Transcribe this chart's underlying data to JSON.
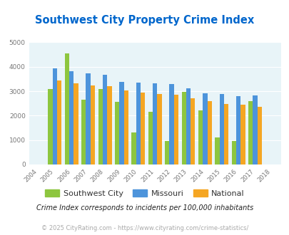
{
  "title": "Southwest City Property Crime Index",
  "years": [
    "2004",
    "2005",
    "2006",
    "2007",
    "2008",
    "2009",
    "2010",
    "2011",
    "2012",
    "2013",
    "2014",
    "2015",
    "2016",
    "2017",
    "2018"
  ],
  "southwest_city": [
    0,
    3100,
    4550,
    2650,
    3100,
    2570,
    1300,
    2160,
    960,
    2960,
    2200,
    1120,
    970,
    2600,
    0
  ],
  "missouri": [
    0,
    3940,
    3830,
    3720,
    3660,
    3370,
    3360,
    3310,
    3300,
    3130,
    2920,
    2890,
    2810,
    2820,
    0
  ],
  "national": [
    0,
    3440,
    3330,
    3230,
    3200,
    3030,
    2950,
    2880,
    2870,
    2720,
    2590,
    2480,
    2460,
    2360,
    0
  ],
  "ylim": [
    0,
    5000
  ],
  "yticks": [
    0,
    1000,
    2000,
    3000,
    4000,
    5000
  ],
  "sw_color": "#8dc63f",
  "mo_color": "#4d94db",
  "nat_color": "#f5a623",
  "bg_color": "#e8f4f8",
  "title_color": "#0066cc",
  "legend_labels": [
    "Southwest City",
    "Missouri",
    "National"
  ],
  "footnote1": "Crime Index corresponds to incidents per 100,000 inhabitants",
  "footnote2": "© 2025 CityRating.com - https://www.cityrating.com/crime-statistics/",
  "footnote1_color": "#222222",
  "footnote2_color": "#aaaaaa",
  "bar_width": 0.27
}
